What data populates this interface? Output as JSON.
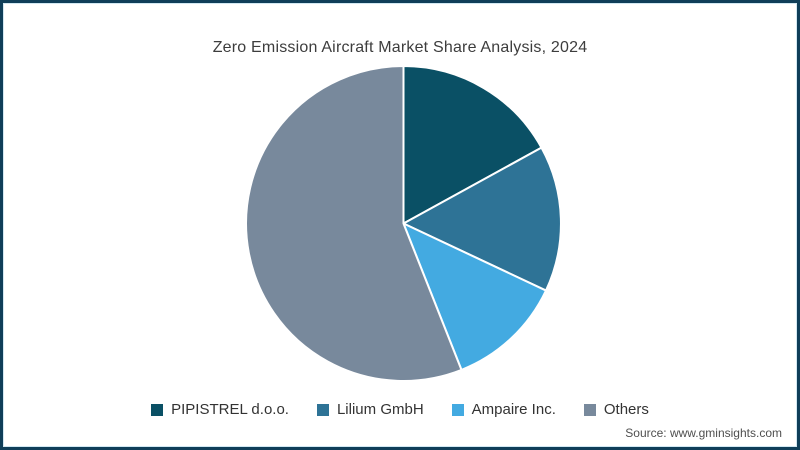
{
  "chart_data": {
    "type": "pie",
    "title": "Zero Emission Aircraft Market Share Analysis, 2024",
    "slices": [
      {
        "label": "PIPISTREL d.o.o.",
        "value": 17,
        "color": "#0a5065"
      },
      {
        "label": "Lilium GmbH",
        "value": 15,
        "color": "#2e7396"
      },
      {
        "label": "Ampaire Inc.",
        "value": 12,
        "color": "#43aae1"
      },
      {
        "label": "Others",
        "value": 56,
        "color": "#78899c"
      }
    ],
    "start_angle_deg": 0,
    "direction": "clockwise",
    "legend_position": "bottom",
    "data_labels_shown": false,
    "slice_separator_color": "#ffffff"
  },
  "source": "Source: www.gminsights.com",
  "frame": {
    "border_color": "#0f3e59",
    "inner_line_color": "#d2e8f2",
    "background": "#ffffff"
  }
}
